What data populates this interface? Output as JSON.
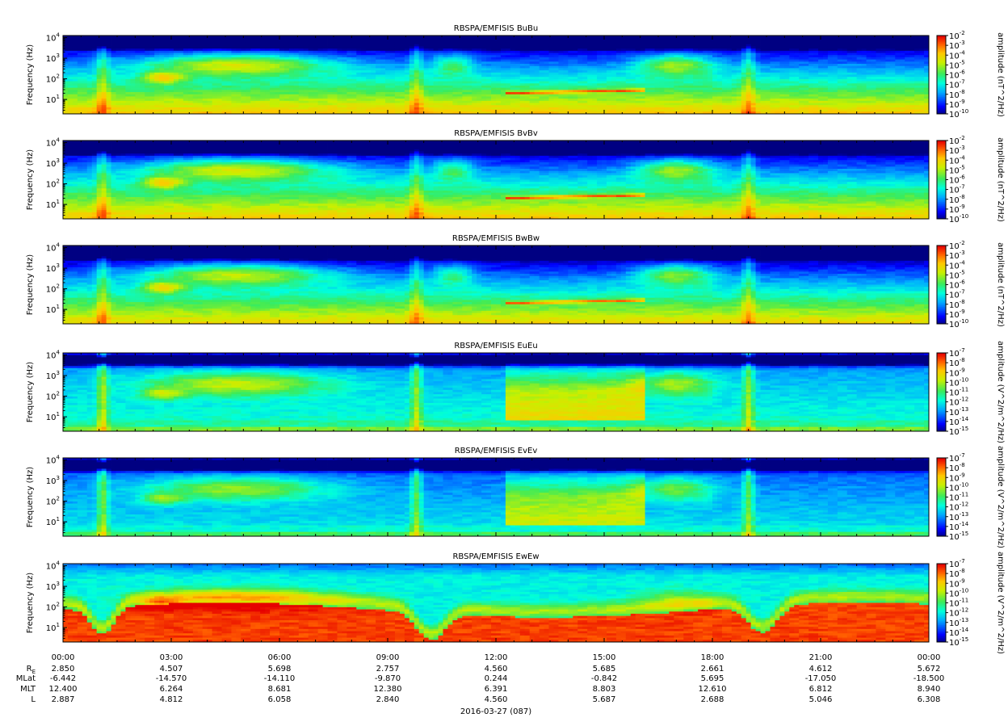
{
  "chart_data": {
    "type": "heatmap",
    "x_ticks": [
      "00:00",
      "03:00",
      "06:00",
      "09:00",
      "12:00",
      "15:00",
      "18:00",
      "21:00",
      "00:00"
    ],
    "date_label": "2016-03-27 (087)",
    "ylabel": "Frequency (Hz)",
    "y_ticks": [
      "10^1",
      "10^2",
      "10^3",
      "10^4"
    ],
    "panels": [
      {
        "title": "RBSPA/EMFISIS  BuBu",
        "cbar_label": "amplitude (nT^2/Hz)",
        "cbar_min_exp": -10,
        "cbar_max_exp": -2,
        "kind": "B",
        "variant": 0
      },
      {
        "title": "RBSPA/EMFISIS  BvBv",
        "cbar_label": "amplitude (nT^2/Hz)",
        "cbar_min_exp": -10,
        "cbar_max_exp": -2,
        "kind": "B",
        "variant": 1
      },
      {
        "title": "RBSPA/EMFISIS  BwBw",
        "cbar_label": "amplitude (nT^2/Hz)",
        "cbar_min_exp": -10,
        "cbar_max_exp": -2,
        "kind": "B",
        "variant": 2
      },
      {
        "title": "RBSPA/EMFISIS  EuEu",
        "cbar_label": "amplitude (V^2/m^2/Hz)",
        "cbar_min_exp": -15,
        "cbar_max_exp": -7,
        "kind": "E",
        "variant": 0
      },
      {
        "title": "RBSPA/EMFISIS  EvEv",
        "cbar_label": "amplitude (V^2/m^2/Hz)",
        "cbar_min_exp": -15,
        "cbar_max_exp": -7,
        "kind": "E",
        "variant": 1
      },
      {
        "title": "RBSPA/EMFISIS  EwEw",
        "cbar_label": "amplitude (V^2/m^2/Hz)",
        "cbar_min_exp": -15,
        "cbar_max_exp": -7,
        "kind": "Ew",
        "variant": 0
      }
    ],
    "ephemeris": {
      "labels": [
        "RE",
        "MLat",
        "MLT",
        "L"
      ],
      "rows": [
        [
          "2.850",
          "4.507",
          "5.698",
          "2.757",
          "4.560",
          "5.685",
          "2.661",
          "4.612",
          "5.672"
        ],
        [
          "-6.442",
          "-14.570",
          "-14.110",
          "-9.870",
          "0.244",
          "-0.842",
          "5.695",
          "-17.050",
          "-18.500"
        ],
        [
          "12.400",
          "6.264",
          "8.681",
          "12.380",
          "6.391",
          "8.803",
          "12.610",
          "6.812",
          "8.940"
        ],
        [
          "2.887",
          "4.812",
          "6.058",
          "2.840",
          "4.560",
          "5.687",
          "2.688",
          "5.046",
          "6.308"
        ]
      ]
    }
  }
}
